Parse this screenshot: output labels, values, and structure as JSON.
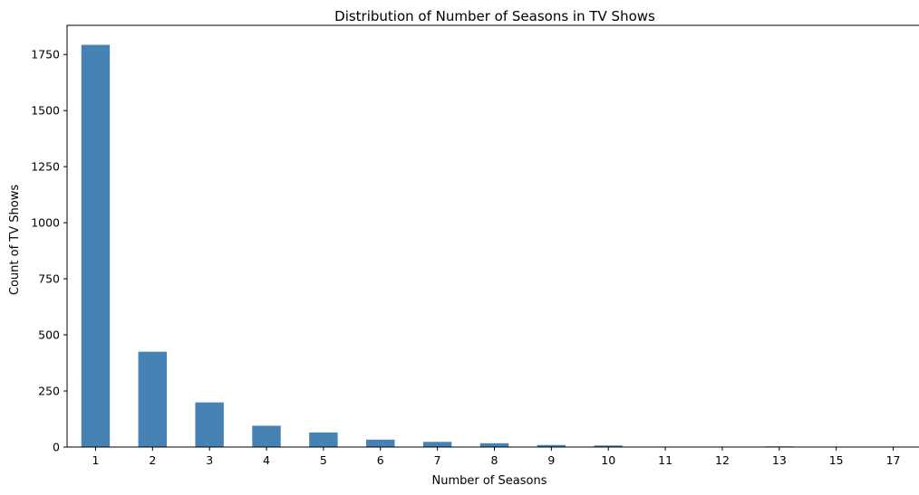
{
  "chart_data": {
    "type": "bar",
    "title": "Distribution of Number of Seasons in TV Shows",
    "xlabel": "Number of Seasons",
    "ylabel": "Count of TV Shows",
    "categories": [
      "1",
      "2",
      "3",
      "4",
      "5",
      "6",
      "7",
      "8",
      "9",
      "10",
      "11",
      "12",
      "13",
      "15",
      "17"
    ],
    "values": [
      1793,
      425,
      199,
      95,
      65,
      33,
      23,
      17,
      9,
      7,
      2,
      2,
      3,
      2,
      1
    ],
    "ylim": [
      0,
      1880
    ],
    "yticks": [
      0,
      250,
      500,
      750,
      1000,
      1250,
      1500,
      1750
    ],
    "bar_color": "#4682b4",
    "grid": false,
    "legend": "none"
  }
}
